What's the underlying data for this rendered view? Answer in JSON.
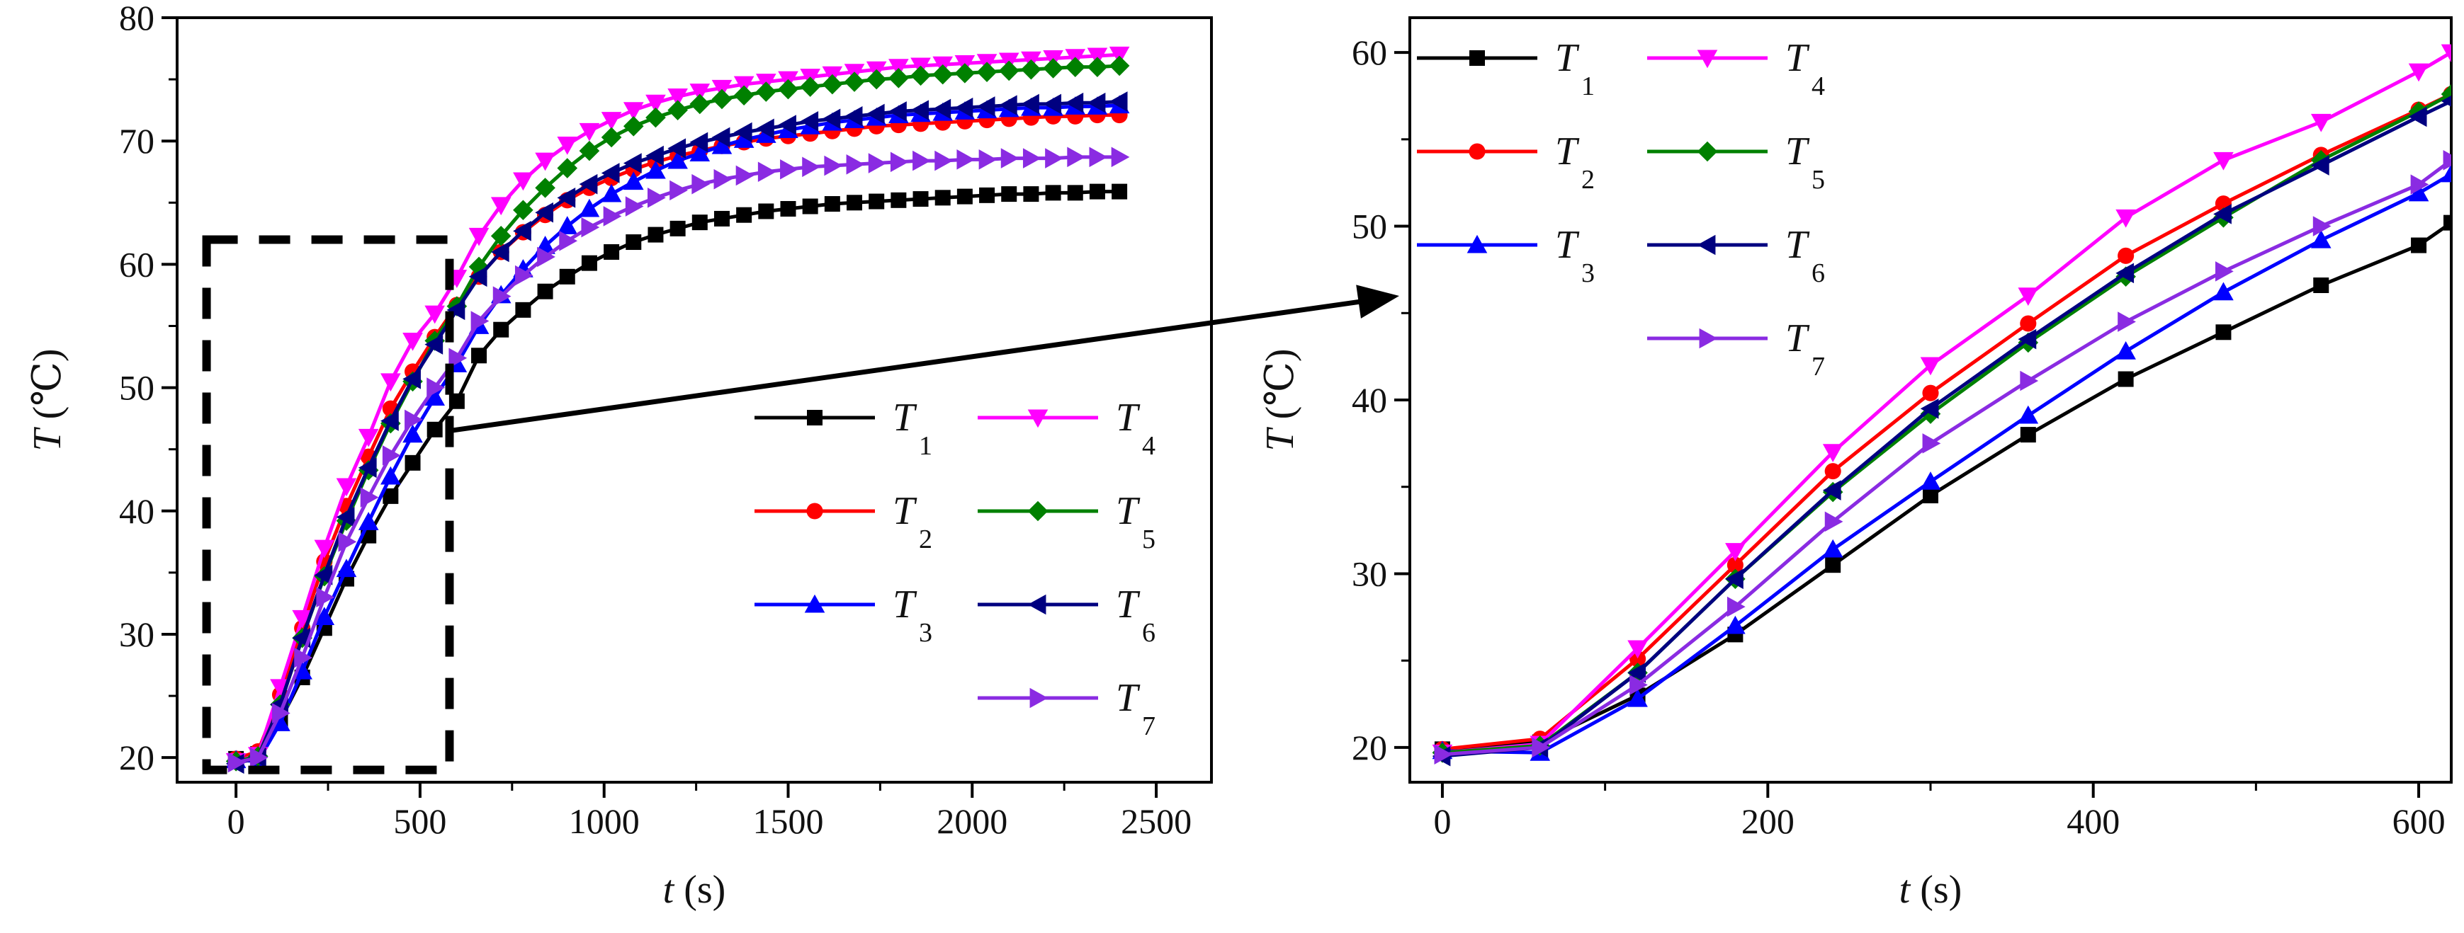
{
  "chart_data": [
    {
      "type": "line",
      "title": "",
      "xlabel_var": "t",
      "xlabel_unit": "(s)",
      "ylabel_var": "T",
      "ylabel_unit": "(℃)",
      "xlim": [
        -160,
        2650
      ],
      "ylim": [
        18,
        80
      ],
      "xticks": [
        0,
        500,
        1000,
        1500,
        2000,
        2500
      ],
      "yticks": [
        20,
        30,
        40,
        50,
        60,
        70,
        80
      ],
      "legend": "bottom-right",
      "zoom_box": {
        "x": [
          -80,
          580
        ],
        "y": [
          19,
          62
        ]
      },
      "x": [
        0,
        60,
        120,
        180,
        240,
        300,
        360,
        420,
        480,
        540,
        600,
        660,
        720,
        780,
        840,
        900,
        960,
        1020,
        1080,
        1140,
        1200,
        1260,
        1320,
        1380,
        1440,
        1500,
        1560,
        1620,
        1680,
        1740,
        1800,
        1860,
        1920,
        1980,
        2040,
        2100,
        2160,
        2220,
        2280,
        2340,
        2400
      ],
      "series": [
        {
          "name": "T",
          "sub": "1",
          "color": "#000000",
          "marker": "square",
          "values": [
            19.9,
            20.3,
            23.0,
            26.5,
            30.5,
            34.5,
            38.0,
            41.2,
            43.9,
            46.6,
            48.9,
            52.6,
            54.7,
            56.3,
            57.8,
            59.0,
            60.1,
            61.0,
            61.8,
            62.4,
            62.9,
            63.4,
            63.7,
            64.0,
            64.3,
            64.5,
            64.7,
            64.9,
            65.0,
            65.1,
            65.2,
            65.3,
            65.4,
            65.5,
            65.6,
            65.7,
            65.7,
            65.8,
            65.8,
            65.9,
            65.9
          ]
        },
        {
          "name": "T",
          "sub": "2",
          "color": "#ff0000",
          "marker": "circle",
          "values": [
            19.9,
            20.5,
            25.1,
            30.5,
            35.9,
            40.4,
            44.4,
            48.3,
            51.3,
            54.1,
            56.7,
            59.0,
            61.0,
            62.6,
            64.0,
            65.2,
            66.2,
            67.0,
            67.7,
            68.3,
            68.8,
            69.2,
            69.6,
            69.9,
            70.2,
            70.4,
            70.6,
            70.8,
            71.0,
            71.2,
            71.3,
            71.4,
            71.5,
            71.6,
            71.7,
            71.8,
            71.9,
            72.0,
            72.0,
            72.1,
            72.1
          ]
        },
        {
          "name": "T",
          "sub": "3",
          "color": "#0000ff",
          "marker": "triangle-up",
          "values": [
            19.8,
            19.7,
            22.8,
            27.0,
            31.4,
            35.3,
            39.1,
            42.8,
            46.2,
            49.2,
            51.9,
            55.0,
            57.5,
            59.6,
            61.5,
            63.1,
            64.5,
            65.7,
            66.7,
            67.6,
            68.4,
            69.0,
            69.6,
            70.1,
            70.5,
            70.9,
            71.2,
            71.5,
            71.7,
            71.9,
            72.1,
            72.2,
            72.3,
            72.4,
            72.5,
            72.6,
            72.7,
            72.7,
            72.8,
            72.8,
            72.9
          ]
        },
        {
          "name": "T",
          "sub": "4",
          "color": "#ff00ff",
          "marker": "triangle-down",
          "values": [
            19.7,
            20.2,
            25.7,
            31.3,
            37.0,
            42.0,
            46.0,
            50.5,
            53.8,
            56.0,
            58.9,
            62.3,
            64.8,
            66.8,
            68.4,
            69.7,
            70.8,
            71.7,
            72.5,
            73.1,
            73.6,
            74.0,
            74.3,
            74.6,
            74.8,
            75.0,
            75.2,
            75.4,
            75.6,
            75.8,
            76.0,
            76.1,
            76.2,
            76.3,
            76.4,
            76.5,
            76.6,
            76.7,
            76.8,
            76.9,
            77.0
          ]
        },
        {
          "name": "T",
          "sub": "5",
          "color": "#008000",
          "marker": "diamond",
          "values": [
            19.7,
            20.1,
            24.3,
            29.7,
            34.7,
            39.2,
            43.3,
            47.1,
            50.5,
            53.8,
            56.6,
            59.8,
            62.3,
            64.4,
            66.2,
            67.8,
            69.2,
            70.3,
            71.2,
            71.9,
            72.5,
            73.0,
            73.4,
            73.7,
            74.0,
            74.2,
            74.4,
            74.6,
            74.8,
            75.0,
            75.1,
            75.3,
            75.4,
            75.5,
            75.6,
            75.7,
            75.8,
            75.9,
            76.0,
            76.0,
            76.1
          ]
        },
        {
          "name": "T",
          "sub": "6",
          "color": "#000080",
          "marker": "triangle-left",
          "values": [
            19.5,
            20.0,
            24.3,
            29.7,
            34.8,
            39.5,
            43.5,
            47.3,
            50.7,
            53.5,
            56.3,
            59.0,
            61.0,
            62.7,
            64.2,
            65.4,
            66.5,
            67.4,
            68.2,
            68.8,
            69.4,
            69.9,
            70.3,
            70.7,
            71.0,
            71.3,
            71.6,
            71.8,
            72.0,
            72.2,
            72.4,
            72.5,
            72.6,
            72.7,
            72.8,
            72.9,
            73.0,
            73.0,
            73.1,
            73.1,
            73.2
          ]
        },
        {
          "name": "T",
          "sub": "7",
          "color": "#8a2be2",
          "marker": "triangle-right",
          "values": [
            19.6,
            20.0,
            23.6,
            28.1,
            33.0,
            37.5,
            41.1,
            44.5,
            47.4,
            50.0,
            52.4,
            55.4,
            57.4,
            59.1,
            60.6,
            61.9,
            63.0,
            63.9,
            64.7,
            65.4,
            66.0,
            66.5,
            66.9,
            67.2,
            67.5,
            67.7,
            67.9,
            68.0,
            68.1,
            68.2,
            68.3,
            68.4,
            68.4,
            68.5,
            68.5,
            68.6,
            68.6,
            68.6,
            68.7,
            68.7,
            68.7
          ]
        }
      ]
    },
    {
      "type": "line",
      "title": "",
      "xlabel_var": "t",
      "xlabel_unit": "(s)",
      "ylabel_var": "T",
      "ylabel_unit": "(℃)",
      "xlim": [
        -20,
        620
      ],
      "ylim": [
        18,
        62
      ],
      "xticks": [
        0,
        200,
        400,
        600
      ],
      "yticks": [
        20,
        30,
        40,
        50,
        60
      ],
      "legend": "top-left",
      "x": [
        0,
        60,
        120,
        180,
        240,
        300,
        360,
        420,
        480,
        540,
        600,
        620
      ],
      "series": [
        {
          "name": "T",
          "sub": "1",
          "color": "#000000",
          "marker": "square",
          "values": [
            19.9,
            20.3,
            23.0,
            26.5,
            30.5,
            34.5,
            38.0,
            41.2,
            43.9,
            46.6,
            48.9,
            50.2
          ]
        },
        {
          "name": "T",
          "sub": "2",
          "color": "#ff0000",
          "marker": "circle",
          "values": [
            19.9,
            20.5,
            25.1,
            30.5,
            35.9,
            40.4,
            44.4,
            48.3,
            51.3,
            54.1,
            56.7,
            57.6
          ]
        },
        {
          "name": "T",
          "sub": "3",
          "color": "#0000ff",
          "marker": "triangle-up",
          "values": [
            19.8,
            19.7,
            22.8,
            27.0,
            31.4,
            35.3,
            39.1,
            42.8,
            46.2,
            49.2,
            51.9,
            53.0
          ]
        },
        {
          "name": "T",
          "sub": "4",
          "color": "#ff00ff",
          "marker": "triangle-down",
          "values": [
            19.7,
            20.2,
            25.7,
            31.3,
            37.0,
            42.0,
            46.0,
            50.5,
            53.8,
            56.0,
            58.9,
            60.0
          ]
        },
        {
          "name": "T",
          "sub": "5",
          "color": "#008000",
          "marker": "diamond",
          "values": [
            19.7,
            20.1,
            24.3,
            29.7,
            34.7,
            39.2,
            43.3,
            47.1,
            50.5,
            53.8,
            56.6,
            57.6
          ]
        },
        {
          "name": "T",
          "sub": "6",
          "color": "#000080",
          "marker": "triangle-left",
          "values": [
            19.5,
            20.0,
            24.3,
            29.7,
            34.8,
            39.5,
            43.5,
            47.3,
            50.7,
            53.5,
            56.3,
            57.2
          ]
        },
        {
          "name": "T",
          "sub": "7",
          "color": "#8a2be2",
          "marker": "triangle-right",
          "values": [
            19.6,
            20.0,
            23.6,
            28.1,
            33.0,
            37.5,
            41.1,
            44.5,
            47.4,
            50.0,
            52.4,
            53.8
          ]
        }
      ]
    }
  ]
}
